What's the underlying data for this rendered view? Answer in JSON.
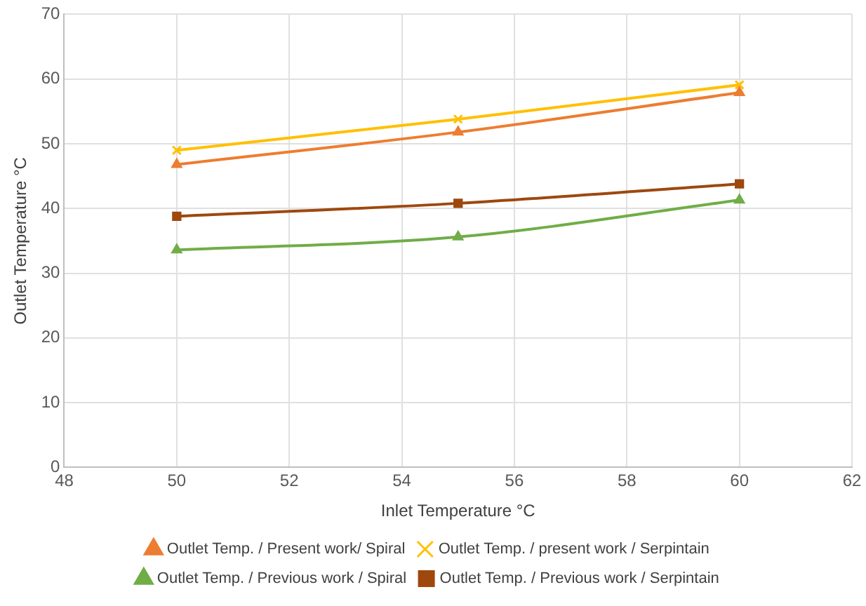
{
  "chart_data": {
    "type": "line",
    "xlabel": "Inlet Temperature °C",
    "ylabel": "Outlet Temperature °C",
    "x": [
      50,
      55,
      60
    ],
    "xlim": [
      48,
      62
    ],
    "xticks": [
      48,
      50,
      52,
      54,
      56,
      58,
      60,
      62
    ],
    "ylim": [
      0,
      70
    ],
    "yticks": [
      0,
      10,
      20,
      30,
      40,
      50,
      60,
      70
    ],
    "grid": true,
    "legend": "bottom",
    "series": [
      {
        "name": "Outlet Temp. / Present work/ Spiral",
        "color": "#ed7d31",
        "marker": "triangle",
        "values": [
          46.8,
          51.8,
          57.9
        ]
      },
      {
        "name": "Outlet Temp. / present work / Serpintain",
        "color": "#ffc000",
        "marker": "cross",
        "values": [
          49,
          53.8,
          59.1
        ]
      },
      {
        "name": "Outlet Temp. / Previous work / Spiral",
        "color": "#70ad47",
        "marker": "triangle",
        "values": [
          33.6,
          35.6,
          41.3
        ]
      },
      {
        "name": "Outlet Temp. / Previous work / Serpintain",
        "color": "#9e480e",
        "marker": "square",
        "values": [
          38.8,
          40.8,
          43.8
        ]
      }
    ]
  }
}
